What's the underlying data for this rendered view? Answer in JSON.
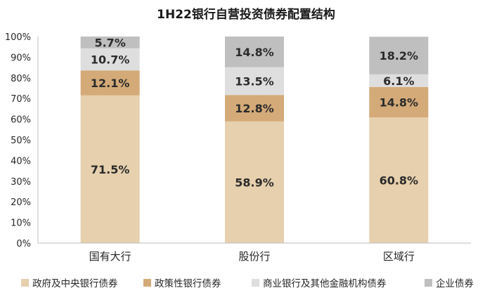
{
  "chart_data": {
    "type": "bar",
    "stacked": true,
    "title": "1H22银行自营投资债券配置结构",
    "categories": [
      "国有大行",
      "股份行",
      "区域行"
    ],
    "yticks": [
      "0%",
      "10%",
      "20%",
      "30%",
      "40%",
      "50%",
      "60%",
      "70%",
      "80%",
      "90%",
      "100%"
    ],
    "ylim": [
      0,
      100
    ],
    "grid": false,
    "legend_position": "bottom",
    "series": [
      {
        "name": "政府及中央银行债券",
        "color": "#e6d0ad",
        "values": [
          71.5,
          58.9,
          60.8
        ],
        "labels": [
          "71.5%",
          "58.9%",
          "60.8%"
        ]
      },
      {
        "name": "政策性银行债券",
        "color": "#d4aa78",
        "values": [
          12.1,
          12.8,
          14.8
        ],
        "labels": [
          "12.1%",
          "12.8%",
          "14.8%"
        ]
      },
      {
        "name": "商业银行及其他金融机构债券",
        "color": "#dedede",
        "values": [
          10.7,
          13.5,
          6.1
        ],
        "labels": [
          "10.7%",
          "13.5%",
          "6.1%"
        ]
      },
      {
        "name": "企业债券",
        "color": "#bfbfbf",
        "values": [
          5.7,
          14.8,
          18.2
        ],
        "labels": [
          "5.7%",
          "14.8%",
          "18.2%"
        ]
      }
    ]
  }
}
